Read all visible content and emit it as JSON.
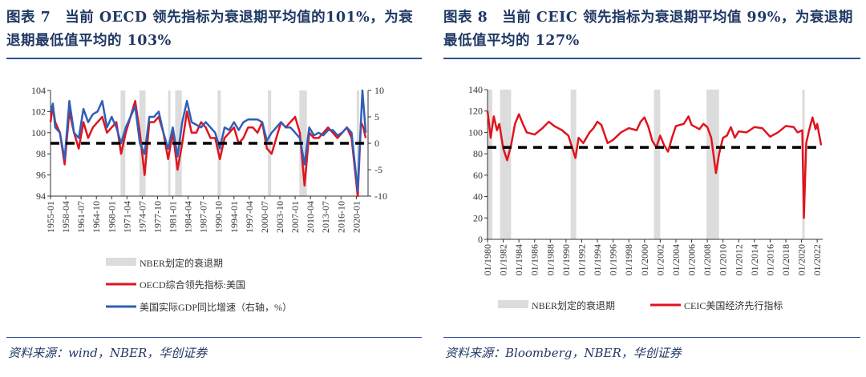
{
  "left": {
    "title": "图表 7　当前 OECD 领先指标为衰退期平均值的101%，为衰退期最低值平均的 103%",
    "source": "资料来源：wind，NBER，华创证券"
  },
  "right": {
    "title": "图表 8　当前 CEIC 领先指标为衰退期平均值 99%，为衰退期最低值平均的 127%",
    "source": "资料来源：Bloomberg，NBER，华创证券"
  },
  "colors": {
    "red": "#e0141e",
    "blue": "#2e5fb8",
    "shade": "#dcdcdc",
    "accent": "#1f3864"
  },
  "chart_data": [
    {
      "type": "line",
      "ylim": [
        94,
        104
      ],
      "yticks": [
        "104",
        "102",
        "100",
        "98",
        "96",
        "94"
      ],
      "y2lim": [
        -10,
        10
      ],
      "y2ticks": [
        "10",
        "5",
        "0",
        "-5",
        "-10"
      ],
      "xticks": [
        "1955-01",
        "1958-04",
        "1961-07",
        "1964-10",
        "1968-01",
        "1971-04",
        "1974-07",
        "1977-10",
        "1981-01",
        "1984-04",
        "1987-07",
        "1990-10",
        "1994-01",
        "1997-04",
        "2000-07",
        "2003-10",
        "2007-01",
        "2010-04",
        "2013-07",
        "2016-10",
        "2020-01"
      ],
      "xlim": [
        1955,
        2022.5
      ],
      "reference_line": {
        "value": 99,
        "axis": "left",
        "style": "dashed"
      },
      "recessions": [
        [
          1969.9,
          1970.9
        ],
        [
          1973.9,
          1975.2
        ],
        [
          1980.0,
          1980.5
        ],
        [
          1981.5,
          1982.9
        ],
        [
          1990.5,
          1991.2
        ],
        [
          2001.2,
          2001.9
        ],
        [
          2007.9,
          2009.5
        ],
        [
          2020.1,
          2020.3
        ]
      ],
      "legend": [
        "NBER划定的衰退期",
        "OECD综合领先指标:美国",
        "美国实际GDP同比增速（右轴，%）"
      ],
      "series": [
        {
          "name": "OECD综合领先指标:美国",
          "axis": "left",
          "points": [
            [
              1955,
              101
            ],
            [
              1955.5,
              102.5
            ],
            [
              1956,
              101
            ],
            [
              1957,
              100
            ],
            [
              1958,
              97
            ],
            [
              1959,
              102
            ],
            [
              1960,
              100
            ],
            [
              1961,
              98.5
            ],
            [
              1962,
              101
            ],
            [
              1963,
              99.5
            ],
            [
              1964,
              100.5
            ],
            [
              1965,
              101
            ],
            [
              1966,
              101.5
            ],
            [
              1967,
              100
            ],
            [
              1968,
              100.5
            ],
            [
              1969,
              101
            ],
            [
              1970,
              98
            ],
            [
              1971,
              100
            ],
            [
              1972,
              101.5
            ],
            [
              1973,
              103
            ],
            [
              1974,
              100
            ],
            [
              1975,
              96
            ],
            [
              1976,
              101
            ],
            [
              1977,
              101
            ],
            [
              1978,
              101.5
            ],
            [
              1979,
              100
            ],
            [
              1980,
              97.5
            ],
            [
              1981,
              100
            ],
            [
              1982,
              96.5
            ],
            [
              1983,
              99
            ],
            [
              1984,
              102
            ],
            [
              1985,
              100
            ],
            [
              1986,
              100
            ],
            [
              1987,
              101
            ],
            [
              1988,
              100.5
            ],
            [
              1989,
              99.5
            ],
            [
              1990,
              99.5
            ],
            [
              1991,
              97.5
            ],
            [
              1992,
              99.5
            ],
            [
              1993,
              100
            ],
            [
              1994,
              100.5
            ],
            [
              1995,
              99
            ],
            [
              1996,
              99.5
            ],
            [
              1997,
              100.5
            ],
            [
              1998,
              100.5
            ],
            [
              1999,
              100
            ],
            [
              2000,
              101
            ],
            [
              2001,
              98.5
            ],
            [
              2002,
              98
            ],
            [
              2003,
              99.5
            ],
            [
              2004,
              101
            ],
            [
              2005,
              100.5
            ],
            [
              2006,
              101
            ],
            [
              2007,
              101.5
            ],
            [
              2008,
              100
            ],
            [
              2009,
              95
            ],
            [
              2010,
              100
            ],
            [
              2011,
              99.5
            ],
            [
              2012,
              99.5
            ],
            [
              2013,
              100
            ],
            [
              2014,
              100.5
            ],
            [
              2015,
              100
            ],
            [
              2016,
              99.5
            ],
            [
              2017,
              100
            ],
            [
              2018,
              100.5
            ],
            [
              2019,
              99.5
            ],
            [
              2020.3,
              94
            ],
            [
              2021,
              101
            ],
            [
              2021.5,
              100.5
            ],
            [
              2022,
              99.5
            ]
          ]
        },
        {
          "name": "美国实际GDP同比增速（右轴，%）",
          "axis": "right",
          "points": [
            [
              1955,
              6
            ],
            [
              1955.5,
              7.5
            ],
            [
              1956,
              3
            ],
            [
              1957,
              2
            ],
            [
              1958,
              -3
            ],
            [
              1959,
              8
            ],
            [
              1960,
              2
            ],
            [
              1961,
              1
            ],
            [
              1962,
              6.5
            ],
            [
              1963,
              4
            ],
            [
              1964,
              5.5
            ],
            [
              1965,
              6
            ],
            [
              1966,
              8
            ],
            [
              1967,
              3
            ],
            [
              1968,
              5
            ],
            [
              1969,
              3
            ],
            [
              1970,
              0
            ],
            [
              1971,
              3
            ],
            [
              1972,
              5
            ],
            [
              1973,
              7
            ],
            [
              1974,
              0
            ],
            [
              1975,
              -2
            ],
            [
              1976,
              5
            ],
            [
              1977,
              5
            ],
            [
              1978,
              6
            ],
            [
              1979,
              2
            ],
            [
              1980,
              -1
            ],
            [
              1981,
              3
            ],
            [
              1982,
              -2.5
            ],
            [
              1983,
              4
            ],
            [
              1984,
              8
            ],
            [
              1985,
              4
            ],
            [
              1986,
              3.5
            ],
            [
              1987,
              3
            ],
            [
              1988,
              4
            ],
            [
              1989,
              3
            ],
            [
              1990,
              2
            ],
            [
              1991,
              -1
            ],
            [
              1992,
              3
            ],
            [
              1993,
              2.5
            ],
            [
              1994,
              4
            ],
            [
              1995,
              2.5
            ],
            [
              1996,
              4
            ],
            [
              1997,
              4.5
            ],
            [
              1998,
              4.5
            ],
            [
              1999,
              4.5
            ],
            [
              2000,
              4
            ],
            [
              2001,
              0.5
            ],
            [
              2002,
              2
            ],
            [
              2003,
              3
            ],
            [
              2004,
              4
            ],
            [
              2005,
              3
            ],
            [
              2006,
              3
            ],
            [
              2007,
              2
            ],
            [
              2008,
              1
            ],
            [
              2009,
              -4
            ],
            [
              2010,
              3
            ],
            [
              2011,
              1.5
            ],
            [
              2012,
              2
            ],
            [
              2013,
              1.5
            ],
            [
              2014,
              2.5
            ],
            [
              2015,
              2.5
            ],
            [
              2016,
              1.5
            ],
            [
              2017,
              2
            ],
            [
              2018,
              3
            ],
            [
              2019,
              2
            ],
            [
              2020.3,
              -9
            ],
            [
              2021.3,
              10
            ],
            [
              2021.7,
              5.5
            ],
            [
              2022,
              2
            ]
          ]
        }
      ]
    },
    {
      "type": "line",
      "ylim": [
        0,
        140
      ],
      "yticks": [
        "140",
        "120",
        "100",
        "80",
        "60",
        "40",
        "20",
        "0"
      ],
      "xticks": [
        "01/1980",
        "01/1982",
        "01/1984",
        "01/1986",
        "01/1988",
        "01/1990",
        "01/1992",
        "01/1994",
        "01/1996",
        "01/1998",
        "01/2000",
        "01/2002",
        "01/2004",
        "01/2006",
        "01/2008",
        "01/2010",
        "01/2012",
        "01/2014",
        "01/2016",
        "01/2018",
        "01/2020",
        "01/2022"
      ],
      "xlim": [
        1980,
        2022.7
      ],
      "reference_line": {
        "value": 86,
        "style": "dashed"
      },
      "recessions": [
        [
          1980.0,
          1980.6
        ],
        [
          1981.6,
          1983.0
        ],
        [
          1990.6,
          1991.3
        ],
        [
          2001.2,
          2002.0
        ],
        [
          2007.9,
          2009.5
        ],
        [
          2020.1,
          2020.4
        ]
      ],
      "legend": [
        "NBER划定的衰退期",
        "CEIC美国经济先行指标"
      ],
      "series": [
        {
          "name": "CEIC美国经济先行指标",
          "points": [
            [
              1980,
              120
            ],
            [
              1980.4,
              95
            ],
            [
              1980.8,
              115
            ],
            [
              1981.2,
              102
            ],
            [
              1981.5,
              108
            ],
            [
              1982,
              85
            ],
            [
              1982.5,
              74
            ],
            [
              1983,
              88
            ],
            [
              1983.5,
              108
            ],
            [
              1984,
              117
            ],
            [
              1984.5,
              108
            ],
            [
              1985,
              100
            ],
            [
              1986,
              98
            ],
            [
              1987,
              104
            ],
            [
              1987.8,
              110
            ],
            [
              1988.5,
              106
            ],
            [
              1989.5,
              102
            ],
            [
              1990.3,
              97
            ],
            [
              1991.2,
              76
            ],
            [
              1991.6,
              95
            ],
            [
              1992.2,
              90
            ],
            [
              1993,
              100
            ],
            [
              1993.5,
              104
            ],
            [
              1994,
              110
            ],
            [
              1994.5,
              107
            ],
            [
              1995.3,
              90
            ],
            [
              1996,
              93
            ],
            [
              1997,
              100
            ],
            [
              1998,
              104
            ],
            [
              1999,
              102
            ],
            [
              1999.5,
              110
            ],
            [
              2000,
              114
            ],
            [
              2000.5,
              105
            ],
            [
              2001,
              92
            ],
            [
              2001.5,
              86
            ],
            [
              2002,
              97
            ],
            [
              2002.5,
              88
            ],
            [
              2003,
              82
            ],
            [
              2003.5,
              95
            ],
            [
              2004,
              106
            ],
            [
              2005,
              108
            ],
            [
              2005.6,
              115
            ],
            [
              2006,
              107
            ],
            [
              2007,
              103
            ],
            [
              2007.5,
              108
            ],
            [
              2008,
              105
            ],
            [
              2008.5,
              95
            ],
            [
              2009.1,
              62
            ],
            [
              2009.5,
              80
            ],
            [
              2010,
              95
            ],
            [
              2010.5,
              97
            ],
            [
              2011,
              105
            ],
            [
              2011.5,
              95
            ],
            [
              2012,
              101
            ],
            [
              2013,
              100
            ],
            [
              2014,
              105
            ],
            [
              2015,
              104
            ],
            [
              2016,
              96
            ],
            [
              2017,
              100
            ],
            [
              2018,
              106
            ],
            [
              2019,
              105
            ],
            [
              2019.5,
              100
            ],
            [
              2020.1,
              102
            ],
            [
              2020.3,
              20
            ],
            [
              2020.6,
              90
            ],
            [
              2021,
              103
            ],
            [
              2021.4,
              114
            ],
            [
              2021.8,
              103
            ],
            [
              2022,
              108
            ],
            [
              2022.5,
              88
            ]
          ]
        }
      ]
    }
  ]
}
